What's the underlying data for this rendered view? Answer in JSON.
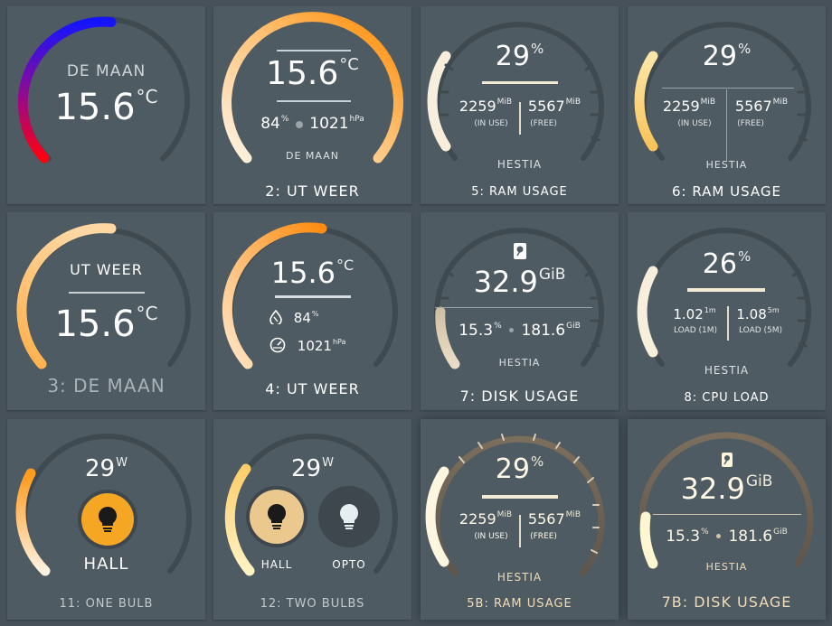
{
  "colors": {
    "page_bg": "#46515a",
    "card_bg": "#4f5b62",
    "track": "#3d474d",
    "bulb_on": "#f5a623",
    "bulb_off": "#3d474d"
  },
  "cards": {
    "c1": {
      "label": "DE MAAN",
      "value": "15.6",
      "unit": "°C"
    },
    "c2": {
      "value": "15.6",
      "unit": "°C",
      "humidity": "84",
      "humidity_unit": "%",
      "pressure": "1021",
      "pressure_unit": "hPa",
      "location": "DE MAAN",
      "title": "2: UT WEER"
    },
    "c5": {
      "percent": "29",
      "percent_unit": "%",
      "used": "2259",
      "used_unit": "MiB",
      "used_label": "(IN USE)",
      "free": "5567",
      "free_unit": "MiB",
      "free_label": "(FREE)",
      "host": "HESTIA",
      "title": "5: RAM USAGE"
    },
    "c6": {
      "percent": "29",
      "percent_unit": "%",
      "used": "2259",
      "used_unit": "MiB",
      "used_label": "(IN USE)",
      "free": "5567",
      "free_unit": "MiB",
      "free_label": "(FREE)",
      "host": "HESTIA",
      "title": "6: RAM USAGE"
    },
    "c3": {
      "label": "UT WEER",
      "value": "15.6",
      "unit": "°C",
      "title": "3: DE MAAN"
    },
    "c4": {
      "value": "15.6",
      "unit": "°C",
      "humidity": "84",
      "humidity_unit": "%",
      "pressure": "1021",
      "pressure_unit": "hPa",
      "title": "4: UT WEER"
    },
    "c7": {
      "value": "32.9",
      "unit": "GiB",
      "percent": "15.3",
      "percent_unit": "%",
      "total": "181.6",
      "total_unit": "GiB",
      "host": "HESTIA",
      "title": "7: DISK USAGE"
    },
    "c8": {
      "percent": "26",
      "percent_unit": "%",
      "load1": "1.02",
      "load1_unit": "1m",
      "load1_label": "LOAD (1M)",
      "load5": "1.08",
      "load5_unit": "5m",
      "load5_label": "LOAD (5M)",
      "host": "HESTIA",
      "title": "8: CPU LOAD"
    },
    "c11": {
      "power": "29",
      "power_unit": "W",
      "bulb_label": "HALL",
      "title": "11: ONE BULB"
    },
    "c12": {
      "power": "29",
      "power_unit": "W",
      "bulb1_label": "HALL",
      "bulb2_label": "OPTO",
      "title": "12: TWO BULBS"
    },
    "c5b": {
      "percent": "29",
      "percent_unit": "%",
      "used": "2259",
      "used_unit": "MiB",
      "used_label": "(IN USE)",
      "free": "5567",
      "free_unit": "MiB",
      "free_label": "(FREE)",
      "host": "HESTIA",
      "title": "5B: RAM USAGE"
    },
    "c7b": {
      "value": "32.9",
      "unit": "GiB",
      "percent": "15.3",
      "percent_unit": "%",
      "total": "181.6",
      "total_unit": "GiB",
      "host": "HESTIA",
      "title": "7B: DISK USAGE"
    }
  },
  "icons": {
    "humidity": "water-drop-icon",
    "pressure": "gauge-icon",
    "disk": "hard-disk-icon",
    "bulb": "lightbulb-icon"
  }
}
